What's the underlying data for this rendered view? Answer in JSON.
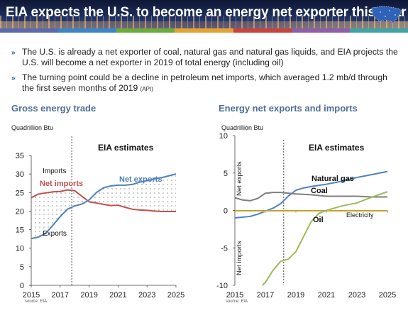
{
  "header": {
    "title": "EIA expects the U.S. to become an energy net exporter this year",
    "map_icon": "us-map-icon",
    "stripe_colors": [
      "#5b6ab0",
      "#3a86c8",
      "#6cab3a",
      "#e2a330",
      "#c9433e",
      "#8f5ea8",
      "#3fa4a4"
    ]
  },
  "bullets": [
    {
      "text": "The U.S. is already a net exporter of coal, natural gas and natural gas liquids, and EIA projects the U.S. will become a net exporter in 2019 of total energy (including oil)",
      "note": ""
    },
    {
      "text": "The turning point could be a decline in petroleum net imports, which averaged 1.2 mb/d through the first seven months of 2019",
      "note": "(API)"
    }
  ],
  "colors": {
    "imports": "#c0504d",
    "exports": "#4f81bd",
    "coal": "#7f7f7f",
    "oil": "#9bbb59",
    "electricity": "#e8c840",
    "accent": "#1f5fa8"
  },
  "chart_data": [
    {
      "type": "line",
      "title": "Gross energy trade",
      "ylabel": "Quadrillion Btu",
      "annotation": "EIA estimates",
      "ylim": [
        0,
        35
      ],
      "yticks": [
        0,
        5,
        10,
        15,
        20,
        25,
        30,
        35
      ],
      "xlim": [
        2015,
        2025
      ],
      "xticks": [
        2015,
        2017,
        2019,
        2021,
        2023,
        2025
      ],
      "estimate_start": 2017.8,
      "source": "source: EIA",
      "fill_label": "Net imports",
      "fill_label2": "Net exports",
      "series": [
        {
          "name": "Imports",
          "x": [
            2015,
            2015.5,
            2016,
            2016.5,
            2017,
            2017.5,
            2018,
            2018.5,
            2019,
            2019.5,
            2020,
            2020.5,
            2021,
            2021.5,
            2022,
            2022.5,
            2023,
            2023.5,
            2024,
            2024.5,
            2025
          ],
          "y": [
            23.6,
            24.6,
            24.9,
            25.2,
            25.3,
            25.7,
            25.5,
            24.0,
            22.5,
            22.2,
            21.8,
            21.5,
            21.6,
            21.0,
            20.5,
            20.3,
            20.2,
            20.0,
            19.9,
            19.9,
            19.9
          ]
        },
        {
          "name": "Exports",
          "x": [
            2015,
            2015.5,
            2016,
            2016.5,
            2017,
            2017.5,
            2018,
            2018.5,
            2019,
            2019.5,
            2020,
            2020.5,
            2021,
            2021.5,
            2022,
            2022.5,
            2023,
            2023.5,
            2024,
            2024.5,
            2025
          ],
          "y": [
            12.6,
            13.0,
            14.0,
            16.2,
            18.5,
            20.5,
            21.4,
            21.9,
            23.0,
            25.0,
            26.3,
            26.8,
            27.0,
            27.0,
            27.2,
            27.8,
            28.2,
            28.7,
            29.0,
            29.5,
            30.0
          ]
        }
      ]
    },
    {
      "type": "line",
      "title": "Energy net exports and imports",
      "ylabel": "Quadrillion Btu",
      "annotation": "EIA estimates",
      "ylim": [
        -10,
        10
      ],
      "yticks": [
        -10,
        -5,
        0,
        5,
        10
      ],
      "xlim": [
        2015,
        2025
      ],
      "xticks": [
        2015,
        2017,
        2019,
        2021,
        2023,
        2025
      ],
      "estimate_start": 2018.2,
      "source": "source: EIA",
      "side_top": "Net exports",
      "side_bottom": "Net imports",
      "series": [
        {
          "name": "Natural gas",
          "x": [
            2015,
            2016,
            2016.5,
            2017,
            2017.5,
            2018,
            2018.5,
            2019,
            2019.5,
            2020,
            2021,
            2022,
            2023,
            2024,
            2025
          ],
          "y": [
            -1.0,
            -0.8,
            -0.5,
            -0.1,
            0.3,
            0.9,
            1.9,
            2.7,
            3.0,
            3.2,
            3.5,
            3.9,
            4.4,
            4.8,
            5.2
          ]
        },
        {
          "name": "Coal",
          "x": [
            2015,
            2015.5,
            2016,
            2016.5,
            2017,
            2017.5,
            2018,
            2019,
            2020,
            2021,
            2022,
            2023,
            2024,
            2025
          ],
          "y": [
            1.7,
            1.4,
            1.3,
            1.6,
            2.3,
            2.4,
            2.4,
            2.2,
            2.1,
            1.9,
            1.9,
            1.9,
            1.8,
            1.8
          ]
        },
        {
          "name": "Electricity",
          "x": [
            2015,
            2017,
            2019,
            2021,
            2023,
            2025
          ],
          "y": [
            -0.1,
            -0.1,
            -0.1,
            -0.1,
            -0.1,
            -0.1
          ]
        },
        {
          "name": "Oil",
          "x": [
            2016.8,
            2017,
            2017.5,
            2018,
            2018.5,
            2019,
            2019.5,
            2020,
            2020.5,
            2021,
            2022,
            2023,
            2024,
            2025
          ],
          "y": [
            -10.0,
            -9.6,
            -8.0,
            -6.8,
            -6.5,
            -5.5,
            -3.5,
            -1.5,
            -0.4,
            0.0,
            0.6,
            1.0,
            1.8,
            2.5
          ]
        }
      ]
    }
  ]
}
